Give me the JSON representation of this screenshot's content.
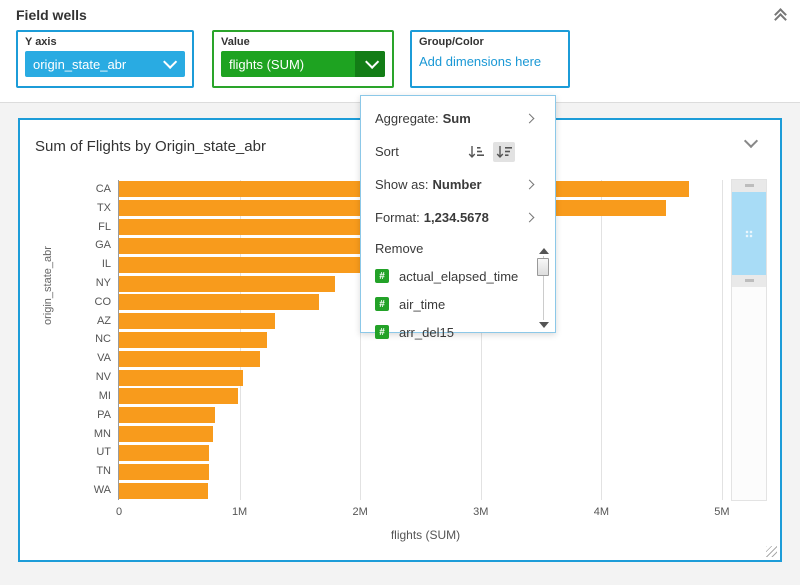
{
  "header": {
    "title": "Field wells"
  },
  "icons": {
    "collapse": "double-chevron-up",
    "dropdown": "chevron-down",
    "submenu": "chevron-right",
    "numeric_field": "#"
  },
  "field_wells": {
    "y_axis": {
      "label": "Y axis",
      "value": "origin_state_abr"
    },
    "value": {
      "label": "Value",
      "value": "flights (SUM)"
    },
    "group_color": {
      "label": "Group/Color",
      "placeholder": "Add dimensions here"
    }
  },
  "menu": {
    "aggregate_label": "Aggregate:",
    "aggregate_value": "Sum",
    "sort_label": "Sort",
    "sort_ascending_icon": "sort-ascending",
    "sort_descending_icon": "sort-descending",
    "sort_selected": "descending",
    "show_as_label": "Show as:",
    "show_as_value": "Number",
    "format_label": "Format:",
    "format_value": "1,234.5678",
    "remove_label": "Remove",
    "fields": [
      "actual_elapsed_time",
      "air_time",
      "arr_del15"
    ]
  },
  "chart_data": {
    "type": "bar",
    "orientation": "horizontal",
    "title": "Sum of Flights by Origin_state_abr",
    "categories": [
      "CA",
      "TX",
      "FL",
      "GA",
      "IL",
      "NY",
      "CO",
      "AZ",
      "NC",
      "VA",
      "NV",
      "MI",
      "PA",
      "MN",
      "UT",
      "TN",
      "WA"
    ],
    "values": [
      4.73,
      4.54,
      3.42,
      3.22,
      3.05,
      1.79,
      1.66,
      1.29,
      1.23,
      1.17,
      1.03,
      0.99,
      0.8,
      0.78,
      0.75,
      0.75,
      0.74
    ],
    "values_unit": "millions",
    "xlabel": "flights (SUM)",
    "ylabel": "origin_state_abr",
    "x_ticks": [
      {
        "value": 0,
        "label": "0"
      },
      {
        "value": 1,
        "label": "1M"
      },
      {
        "value": 2,
        "label": "2M"
      },
      {
        "value": 3,
        "label": "3M"
      },
      {
        "value": 4,
        "label": "4M"
      },
      {
        "value": 5,
        "label": "5M"
      }
    ],
    "xlim": [
      0,
      5.1
    ],
    "grid": true,
    "legend": "none",
    "bar_color": "#f89b1c"
  },
  "colors": {
    "accent_blue": "#1c9cd8",
    "pill_blue": "#29abe2",
    "well_green": "#2aa42a",
    "pill_green": "#1ea321",
    "pill_green_dark": "#137d16",
    "bar_orange": "#f89b1c",
    "link_blue": "#1a98d5",
    "scroll_thumb_blue": "#a8dcf6"
  }
}
